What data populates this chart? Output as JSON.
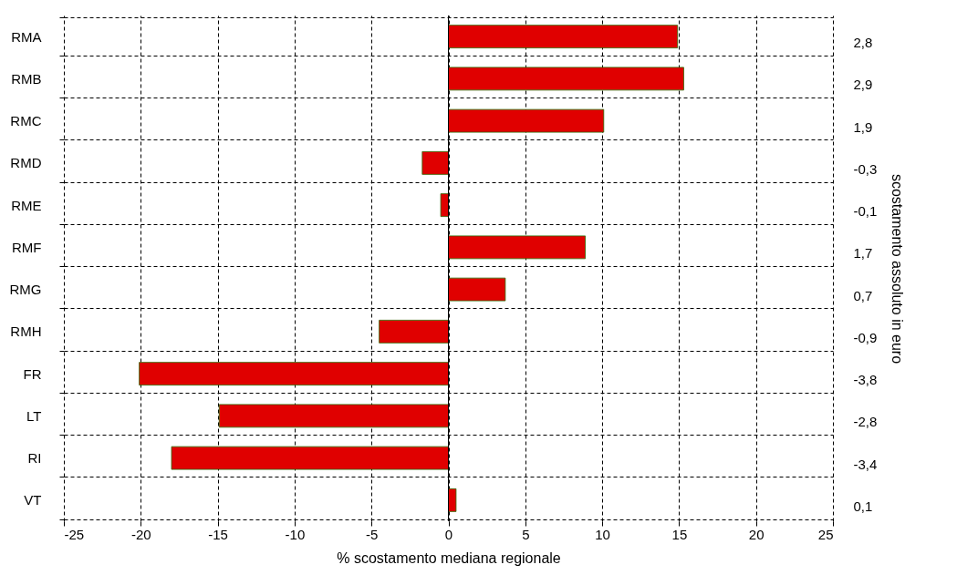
{
  "chart_data": {
    "type": "bar",
    "orientation": "horizontal",
    "xlabel": "% scostamento mediana regionale",
    "y2label": "scostamento assoluto in euro",
    "categories": [
      "RMA",
      "RMB",
      "RMC",
      "RMD",
      "RME",
      "RMF",
      "RMG",
      "RMH",
      "FR",
      "LT",
      "RI",
      "VT"
    ],
    "y2_categories": [
      "2,8",
      "2,9",
      "1,9",
      "-0,3",
      "-0,1",
      "1,7",
      "0,7",
      "-0,9",
      "-3,8",
      "-2,8",
      "-3,4",
      "0,1"
    ],
    "values": [
      14.9,
      15.3,
      10.1,
      -1.7,
      -0.5,
      8.9,
      3.7,
      -4.5,
      -20.1,
      -14.9,
      -18.0,
      0.5
    ],
    "color": "#e00000",
    "xlim": [
      -25,
      25
    ],
    "xticks": [
      -25,
      -20,
      -15,
      -10,
      -5,
      0,
      5,
      10,
      15,
      20,
      25
    ],
    "grid": true
  }
}
